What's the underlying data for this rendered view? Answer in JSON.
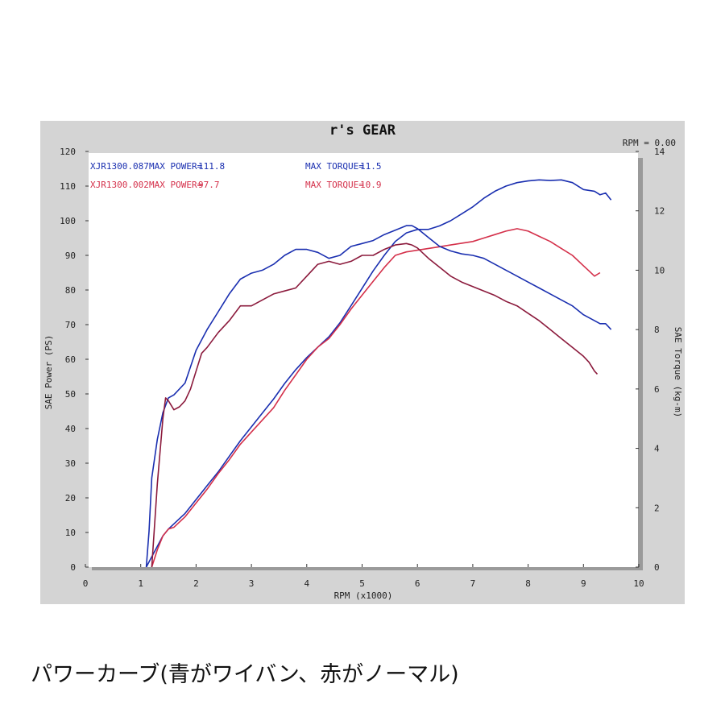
{
  "chart_data": {
    "type": "line",
    "title": "r's GEAR",
    "rpm_readout": "RPM = 0.00",
    "xlabel": "RPM (x1000)",
    "ylabel_left": "SAE Power (PS)",
    "ylabel_right": "SAE Torque (kg-m)",
    "xlim": [
      0,
      10
    ],
    "ylim_left": [
      0,
      120
    ],
    "ylim_right": [
      0,
      14
    ],
    "x_ticks": [
      "0",
      "1",
      "2",
      "3",
      "4",
      "5",
      "6",
      "7",
      "8",
      "9",
      "10"
    ],
    "y_ticks_left": [
      "0",
      "10",
      "20",
      "30",
      "40",
      "50",
      "60",
      "70",
      "80",
      "90",
      "100",
      "110",
      "120"
    ],
    "y_ticks_right": [
      "0",
      "2",
      "4",
      "6",
      "8",
      "10",
      "12",
      "14"
    ],
    "grid": false,
    "legend": [
      {
        "run": "XJR1300.087",
        "power_label": "MAX POWER=",
        "power_value": "111.8",
        "torque_label": "MAX TORQUE=",
        "torque_value": "11.5",
        "color": "#1a2fb0"
      },
      {
        "run": "XJR1300.002",
        "power_label": "MAX POWER=",
        "power_value": "97.7",
        "torque_label": "MAX TORQUE=",
        "torque_value": "10.9",
        "color": "#d4304a"
      }
    ],
    "series": [
      {
        "name": "XJR1300.087",
        "quantity": "power",
        "axis": "left",
        "color": "#1a2fb0",
        "x": [
          1.1,
          1.2,
          1.3,
          1.4,
          1.5,
          1.6,
          1.7,
          1.8,
          2.0,
          2.2,
          2.4,
          2.6,
          2.8,
          3.0,
          3.2,
          3.4,
          3.6,
          3.8,
          4.0,
          4.2,
          4.4,
          4.6,
          4.8,
          5.0,
          5.2,
          5.4,
          5.6,
          5.8,
          6.0,
          6.2,
          6.4,
          6.6,
          6.8,
          7.0,
          7.2,
          7.4,
          7.6,
          7.8,
          8.0,
          8.2,
          8.4,
          8.6,
          8.8,
          9.0,
          9.2,
          9.3,
          9.4,
          9.5
        ],
        "y": [
          0,
          3,
          6,
          9,
          11,
          12.5,
          14,
          15.5,
          19.5,
          23.5,
          27.5,
          32,
          36.5,
          40.5,
          44.5,
          48.5,
          53,
          57,
          60.5,
          63.5,
          66.5,
          70.5,
          75.5,
          80.5,
          85.5,
          90,
          94,
          96.5,
          97.5,
          97.5,
          98.5,
          100,
          102,
          104,
          106.5,
          108.5,
          110,
          111,
          111.5,
          111.8,
          111.6,
          111.8,
          111,
          109,
          108.5,
          107.5,
          108,
          106
        ]
      },
      {
        "name": "XJR1300.002",
        "quantity": "power",
        "axis": "left",
        "color": "#d4304a",
        "x": [
          1.2,
          1.3,
          1.4,
          1.5,
          1.6,
          1.7,
          1.8,
          2.0,
          2.2,
          2.4,
          2.6,
          2.8,
          3.0,
          3.2,
          3.4,
          3.6,
          3.8,
          4.0,
          4.2,
          4.4,
          4.6,
          4.8,
          5.0,
          5.2,
          5.4,
          5.6,
          5.8,
          6.0,
          6.2,
          6.4,
          6.6,
          6.8,
          7.0,
          7.2,
          7.4,
          7.6,
          7.8,
          8.0,
          8.2,
          8.4,
          8.6,
          8.8,
          9.0,
          9.1,
          9.2,
          9.3
        ],
        "y": [
          0,
          5,
          9,
          11,
          11.5,
          13,
          14.5,
          18.5,
          22.5,
          27,
          31,
          35.5,
          39,
          42.5,
          46,
          51,
          55.5,
          60,
          63.5,
          66,
          70,
          74.5,
          78.5,
          82.5,
          86.5,
          90,
          91,
          91.5,
          92,
          92.5,
          93,
          93.5,
          94,
          95,
          96,
          97,
          97.7,
          97,
          95.5,
          94,
          92,
          90,
          87,
          85.5,
          84,
          85
        ]
      },
      {
        "name": "XJR1300.087",
        "quantity": "torque",
        "axis": "right",
        "color": "#1a2fb0",
        "x": [
          1.1,
          1.15,
          1.2,
          1.3,
          1.4,
          1.5,
          1.6,
          1.8,
          2.0,
          2.2,
          2.4,
          2.6,
          2.8,
          3.0,
          3.2,
          3.4,
          3.6,
          3.8,
          4.0,
          4.2,
          4.4,
          4.6,
          4.8,
          5.0,
          5.2,
          5.4,
          5.6,
          5.8,
          5.9,
          6.0,
          6.2,
          6.4,
          6.6,
          6.8,
          7.0,
          7.2,
          7.4,
          7.6,
          7.8,
          8.0,
          8.2,
          8.4,
          8.6,
          8.8,
          9.0,
          9.2,
          9.3,
          9.4,
          9.5
        ],
        "y": [
          0,
          1.2,
          3.0,
          4.3,
          5.2,
          5.7,
          5.8,
          6.2,
          7.3,
          8.0,
          8.6,
          9.2,
          9.7,
          9.9,
          10.0,
          10.2,
          10.5,
          10.7,
          10.7,
          10.6,
          10.4,
          10.5,
          10.8,
          10.9,
          11.0,
          11.2,
          11.35,
          11.5,
          11.5,
          11.4,
          11.1,
          10.8,
          10.65,
          10.55,
          10.5,
          10.4,
          10.2,
          10.0,
          9.8,
          9.6,
          9.4,
          9.2,
          9.0,
          8.8,
          8.5,
          8.3,
          8.2,
          8.2,
          8.0
        ]
      },
      {
        "name": "XJR1300.002",
        "quantity": "torque",
        "axis": "right",
        "color": "#8b1a3c",
        "x": [
          1.2,
          1.3,
          1.4,
          1.45,
          1.5,
          1.6,
          1.7,
          1.8,
          1.9,
          2.0,
          2.1,
          2.2,
          2.4,
          2.6,
          2.8,
          3.0,
          3.2,
          3.4,
          3.6,
          3.8,
          4.0,
          4.2,
          4.4,
          4.6,
          4.8,
          5.0,
          5.2,
          5.4,
          5.6,
          5.8,
          5.9,
          6.0,
          6.2,
          6.4,
          6.6,
          6.8,
          7.0,
          7.2,
          7.4,
          7.6,
          7.8,
          8.0,
          8.2,
          8.4,
          8.6,
          8.8,
          9.0,
          9.1,
          9.2,
          9.25
        ],
        "y": [
          0,
          2.8,
          5.0,
          5.7,
          5.6,
          5.3,
          5.4,
          5.6,
          6.0,
          6.6,
          7.2,
          7.4,
          7.9,
          8.3,
          8.8,
          8.8,
          9.0,
          9.2,
          9.3,
          9.4,
          9.8,
          10.2,
          10.3,
          10.2,
          10.3,
          10.5,
          10.5,
          10.7,
          10.85,
          10.9,
          10.85,
          10.75,
          10.4,
          10.1,
          9.8,
          9.6,
          9.45,
          9.3,
          9.15,
          8.95,
          8.8,
          8.55,
          8.3,
          8.0,
          7.7,
          7.4,
          7.1,
          6.9,
          6.6,
          6.5
        ]
      }
    ]
  },
  "caption": "パワーカーブ(青がワイバン、赤がノーマル)"
}
